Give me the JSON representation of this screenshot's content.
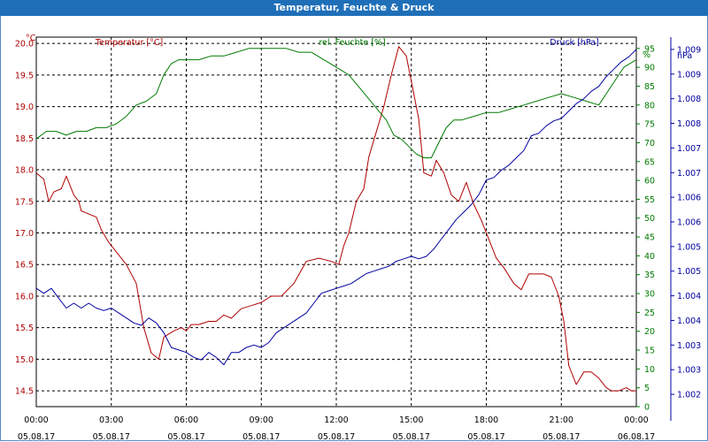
{
  "window": {
    "title": "Temperatur, Feuchte & Druck"
  },
  "colors": {
    "temperature": "#b00000",
    "humidity": "#007a00",
    "pressure": "#0000a0",
    "grid": "#000000",
    "titlebar": "#1f6fb8"
  },
  "chart_data": {
    "type": "line",
    "title": "Temperatur, Feuchte & Druck",
    "grid": true,
    "x_range_hours": [
      0,
      24
    ],
    "x_ticks": [
      {
        "time": "00:00",
        "date": "05.08.17"
      },
      {
        "time": "03:00",
        "date": "05.08.17"
      },
      {
        "time": "06:00",
        "date": "05.08.17"
      },
      {
        "time": "09:00",
        "date": "05.08.17"
      },
      {
        "time": "12:00",
        "date": "05.08.17"
      },
      {
        "time": "15:00",
        "date": "05.08.17"
      },
      {
        "time": "18:00",
        "date": "05.08.17"
      },
      {
        "time": "21:00",
        "date": "05.08.17"
      },
      {
        "time": "00:00",
        "date": "06.08.17"
      }
    ],
    "axes": {
      "temperature": {
        "label": "Temperatur [°C]",
        "unit": "°C",
        "range": [
          14.25,
          20.1
        ],
        "ticks": [
          "20.0",
          "19.5",
          "19.0",
          "18.5",
          "18.0",
          "17.5",
          "17.0",
          "16.5",
          "16.0",
          "15.5",
          "15.0",
          "14.5"
        ],
        "tick_values": [
          20.0,
          19.5,
          19.0,
          18.5,
          18.0,
          17.5,
          17.0,
          16.5,
          16.0,
          15.5,
          15.0,
          14.5
        ]
      },
      "humidity": {
        "label": "rel. Feuchte [%]",
        "unit": "%",
        "range": [
          0,
          98
        ],
        "ticks": [
          "95",
          "90",
          "85",
          "80",
          "75",
          "70",
          "65",
          "60",
          "55",
          "50",
          "45",
          "40",
          "35",
          "30",
          "25",
          "20",
          "15",
          "10",
          "5",
          "0"
        ],
        "tick_values": [
          95,
          90,
          85,
          80,
          75,
          70,
          65,
          60,
          55,
          50,
          45,
          40,
          35,
          30,
          25,
          20,
          15,
          10,
          5,
          0
        ]
      },
      "pressure": {
        "label": "Druck [hPa]",
        "unit": "hPa",
        "range": [
          1002.0,
          1009.5
        ],
        "ticks": [
          "1.009",
          "1.009",
          "1.008",
          "1.008",
          "1.007",
          "1.007",
          "1.006",
          "1.006",
          "1.005",
          "1.005",
          "1.004",
          "1.004",
          "1.003",
          "1.003",
          "1.002"
        ],
        "tick_values": [
          1009.25,
          1008.75,
          1008.25,
          1007.75,
          1007.25,
          1006.75,
          1006.25,
          1005.75,
          1005.25,
          1004.75,
          1004.25,
          1003.75,
          1003.25,
          1002.75,
          1002.25
        ]
      }
    },
    "series": [
      {
        "name": "Temperatur [°C]",
        "axis": "temperature",
        "x": [
          0,
          0.3,
          0.5,
          0.7,
          1.0,
          1.2,
          1.5,
          1.7,
          1.8,
          2.1,
          2.4,
          2.6,
          2.9,
          3.2,
          3.6,
          4.0,
          4.3,
          4.6,
          4.9,
          5.1,
          5.3,
          5.5,
          5.8,
          6.0,
          6.2,
          6.5,
          6.9,
          7.2,
          7.5,
          7.8,
          8.2,
          8.6,
          9.0,
          9.4,
          9.8,
          10.3,
          10.8,
          11.3,
          11.8,
          12.1,
          12.3,
          12.5,
          12.8,
          13.1,
          13.3,
          13.6,
          13.9,
          14.2,
          14.5,
          14.8,
          15.0,
          15.3,
          15.5,
          15.8,
          16.0,
          16.3,
          16.6,
          16.9,
          17.2,
          17.5,
          17.8,
          18.1,
          18.4,
          18.7,
          19.1,
          19.4,
          19.7,
          20.0,
          20.3,
          20.6,
          20.9,
          21.1,
          21.3,
          21.6,
          21.9,
          22.2,
          22.5,
          22.8,
          23.0,
          23.3,
          23.6,
          23.8,
          24.0
        ],
        "values": [
          17.95,
          17.85,
          17.5,
          17.65,
          17.7,
          17.9,
          17.6,
          17.5,
          17.35,
          17.3,
          17.25,
          17.05,
          16.85,
          16.7,
          16.5,
          16.2,
          15.5,
          15.1,
          15.0,
          15.35,
          15.4,
          15.45,
          15.5,
          15.45,
          15.55,
          15.55,
          15.6,
          15.6,
          15.7,
          15.65,
          15.8,
          15.85,
          15.9,
          16.0,
          16.0,
          16.2,
          16.55,
          16.6,
          16.55,
          16.5,
          16.8,
          17.0,
          17.5,
          17.7,
          18.2,
          18.6,
          19.0,
          19.5,
          19.95,
          19.8,
          19.4,
          18.8,
          17.95,
          17.9,
          18.15,
          17.95,
          17.6,
          17.5,
          17.8,
          17.45,
          17.2,
          16.9,
          16.6,
          16.45,
          16.2,
          16.1,
          16.35,
          16.35,
          16.35,
          16.3,
          16.0,
          15.6,
          14.9,
          14.6,
          14.8,
          14.8,
          14.7,
          14.55,
          14.5,
          14.5,
          14.55,
          14.5,
          14.5
        ]
      },
      {
        "name": "rel. Feuchte [%]",
        "axis": "humidity",
        "x": [
          0,
          0.4,
          0.8,
          1.2,
          1.6,
          2.0,
          2.4,
          2.8,
          3.2,
          3.6,
          4.0,
          4.4,
          4.8,
          5.1,
          5.4,
          5.7,
          6.0,
          6.5,
          7.0,
          7.5,
          8.0,
          8.5,
          9.0,
          9.5,
          10.0,
          10.5,
          11.0,
          11.5,
          12.0,
          12.5,
          13.0,
          13.5,
          14.0,
          14.3,
          14.6,
          14.9,
          15.2,
          15.5,
          15.8,
          16.1,
          16.4,
          16.7,
          17.0,
          17.5,
          18.0,
          18.5,
          19.0,
          19.5,
          20.0,
          20.5,
          21.0,
          21.5,
          22.0,
          22.5,
          23.0,
          23.5,
          24.0
        ],
        "values": [
          71,
          73,
          73,
          72,
          73,
          73,
          74,
          74,
          75,
          77,
          80,
          81,
          83,
          88,
          91,
          92,
          92,
          92,
          93,
          93,
          94,
          95,
          95,
          95,
          95,
          94,
          94,
          92,
          90,
          88,
          84,
          80,
          76,
          72,
          71,
          69,
          67,
          66,
          66,
          70,
          74,
          76,
          76,
          77,
          78,
          78,
          79,
          80,
          81,
          82,
          83,
          82,
          81,
          80,
          85,
          90,
          92
        ]
      },
      {
        "name": "Druck [hPa]",
        "axis": "pressure",
        "x": [
          0,
          0.3,
          0.6,
          0.9,
          1.2,
          1.5,
          1.8,
          2.1,
          2.4,
          2.7,
          3.0,
          3.3,
          3.6,
          3.9,
          4.2,
          4.5,
          4.8,
          5.1,
          5.4,
          5.7,
          6.0,
          6.3,
          6.6,
          6.9,
          7.2,
          7.5,
          7.8,
          8.1,
          8.4,
          8.7,
          9.0,
          9.3,
          9.6,
          9.9,
          10.2,
          10.5,
          10.8,
          11.1,
          11.4,
          11.7,
          12.0,
          12.3,
          12.6,
          12.9,
          13.2,
          13.5,
          13.8,
          14.1,
          14.4,
          14.7,
          15.0,
          15.3,
          15.6,
          15.9,
          16.2,
          16.5,
          16.8,
          17.1,
          17.4,
          17.7,
          18.0,
          18.3,
          18.6,
          18.9,
          19.2,
          19.5,
          19.8,
          20.1,
          20.4,
          20.7,
          21.0,
          21.3,
          21.6,
          21.9,
          22.2,
          22.5,
          22.8,
          23.1,
          23.4,
          23.7,
          24.0
        ],
        "values": [
          1004.4,
          1004.3,
          1004.4,
          1004.2,
          1004.0,
          1004.1,
          1004.0,
          1004.1,
          1004.0,
          1003.95,
          1004.0,
          1003.9,
          1003.8,
          1003.7,
          1003.65,
          1003.8,
          1003.7,
          1003.5,
          1003.2,
          1003.15,
          1003.1,
          1003.0,
          1002.95,
          1003.1,
          1003.0,
          1002.85,
          1003.1,
          1003.1,
          1003.2,
          1003.25,
          1003.2,
          1003.3,
          1003.5,
          1003.6,
          1003.7,
          1003.8,
          1003.9,
          1004.1,
          1004.3,
          1004.35,
          1004.4,
          1004.45,
          1004.5,
          1004.6,
          1004.7,
          1004.75,
          1004.8,
          1004.85,
          1004.95,
          1005.0,
          1005.05,
          1005.0,
          1005.05,
          1005.2,
          1005.4,
          1005.6,
          1005.8,
          1005.95,
          1006.1,
          1006.3,
          1006.6,
          1006.65,
          1006.8,
          1006.9,
          1007.05,
          1007.2,
          1007.5,
          1007.55,
          1007.7,
          1007.8,
          1007.85,
          1008.0,
          1008.15,
          1008.25,
          1008.4,
          1008.5,
          1008.7,
          1008.85,
          1009.0,
          1009.1,
          1009.25
        ]
      }
    ]
  }
}
